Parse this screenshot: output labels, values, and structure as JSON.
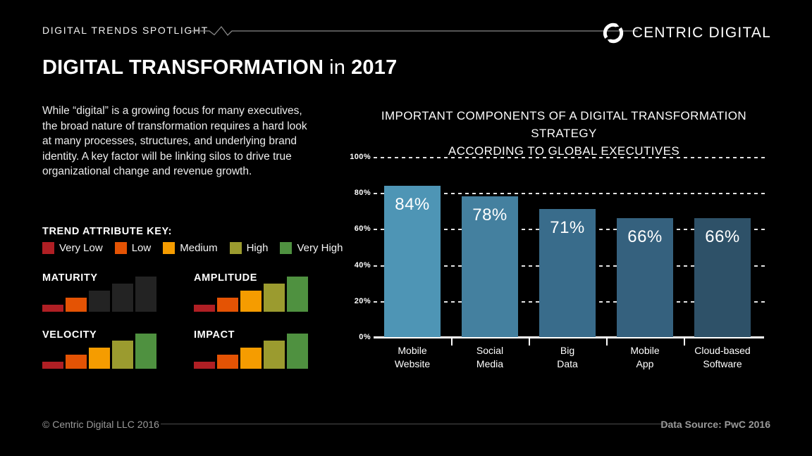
{
  "header": {
    "eyebrow": "DIGITAL TRENDS SPOTLIGHT",
    "brand": "CENTRIC DIGITAL",
    "brand_icon": "circular-sync-logo"
  },
  "title": {
    "main": "DIGITAL TRANSFORMATION",
    "connector": "in",
    "year": "2017"
  },
  "intro": {
    "lines": [
      "While “digital” is a growing focus for many executives,",
      "the broad nature of transformation requires a hard look",
      "at many processes, structures, and underlying brand",
      "identity. A key factor will be linking silos to drive true",
      "organizational change and revenue growth."
    ]
  },
  "trend_key": {
    "title": "TREND ATTRIBUTE KEY:",
    "levels": [
      {
        "label": "Very Low",
        "color": "#b01f24"
      },
      {
        "label": "Low",
        "color": "#e45304"
      },
      {
        "label": "Medium",
        "color": "#f59c00"
      },
      {
        "label": "High",
        "color": "#9b9b2f"
      },
      {
        "label": "Very High",
        "color": "#4f9140"
      }
    ],
    "unlit_color": "#232323"
  },
  "chart_data": [
    {
      "type": "bar",
      "title": "IMPORTANT COMPONENTS OF A DIGITAL TRANSFORMATION STRATEGY ACCORDING TO GLOBAL EXECUTIVES",
      "title_lines": [
        "IMPORTANT COMPONENTS OF A DIGITAL TRANSFORMATION STRATEGY",
        "ACCORDING TO GLOBAL EXECUTIVES"
      ],
      "categories": [
        [
          "Mobile",
          "Website"
        ],
        [
          "Social",
          "Media"
        ],
        [
          "Big",
          "Data"
        ],
        [
          "Mobile",
          "App"
        ],
        [
          "Cloud-based",
          "Software"
        ]
      ],
      "values": [
        84,
        78,
        71,
        66,
        66
      ],
      "value_labels": [
        "84%",
        "78%",
        "71%",
        "66%",
        "66%"
      ],
      "bar_colors": [
        "#4e95b5",
        "#44809f",
        "#396c8b",
        "#35617e",
        "#2e5168"
      ],
      "y_ticks": [
        "0%",
        "20%",
        "40%",
        "60%",
        "80%",
        "100%"
      ],
      "ylim": [
        0,
        100
      ],
      "grid": "dashed-horizontal",
      "legend": "none"
    },
    {
      "type": "bar",
      "title": "MATURITY",
      "scale": [
        "Very Low",
        "Low",
        "Medium",
        "High",
        "Very High"
      ],
      "rating": "Low",
      "lit_levels": [
        "Very Low",
        "Low"
      ],
      "bar_colors": [
        "#b01f24",
        "#e45304",
        "#232323",
        "#232323",
        "#232323"
      ]
    },
    {
      "type": "bar",
      "title": "AMPLITUDE",
      "scale": [
        "Very Low",
        "Low",
        "Medium",
        "High",
        "Very High"
      ],
      "rating": "Very High",
      "lit_levels": [
        "Very Low",
        "Low",
        "Medium",
        "High",
        "Very High"
      ],
      "bar_colors": [
        "#b01f24",
        "#e45304",
        "#f59c00",
        "#9b9b2f",
        "#4f9140"
      ]
    },
    {
      "type": "bar",
      "title": "VELOCITY",
      "scale": [
        "Very Low",
        "Low",
        "Medium",
        "High",
        "Very High"
      ],
      "rating": "Very High",
      "lit_levels": [
        "Very Low",
        "Low",
        "Medium",
        "High",
        "Very High"
      ],
      "bar_colors": [
        "#b01f24",
        "#e45304",
        "#f59c00",
        "#9b9b2f",
        "#4f9140"
      ]
    },
    {
      "type": "bar",
      "title": "IMPACT",
      "scale": [
        "Very Low",
        "Low",
        "Medium",
        "High",
        "Very High"
      ],
      "rating": "Very High",
      "lit_levels": [
        "Very Low",
        "Low",
        "Medium",
        "High",
        "Very High"
      ],
      "bar_colors": [
        "#b01f24",
        "#e45304",
        "#f59c00",
        "#9b9b2f",
        "#4f9140"
      ]
    }
  ],
  "footer": {
    "copyright": "© Centric Digital LLC 2016",
    "source": "Data Source: PwC 2016"
  }
}
